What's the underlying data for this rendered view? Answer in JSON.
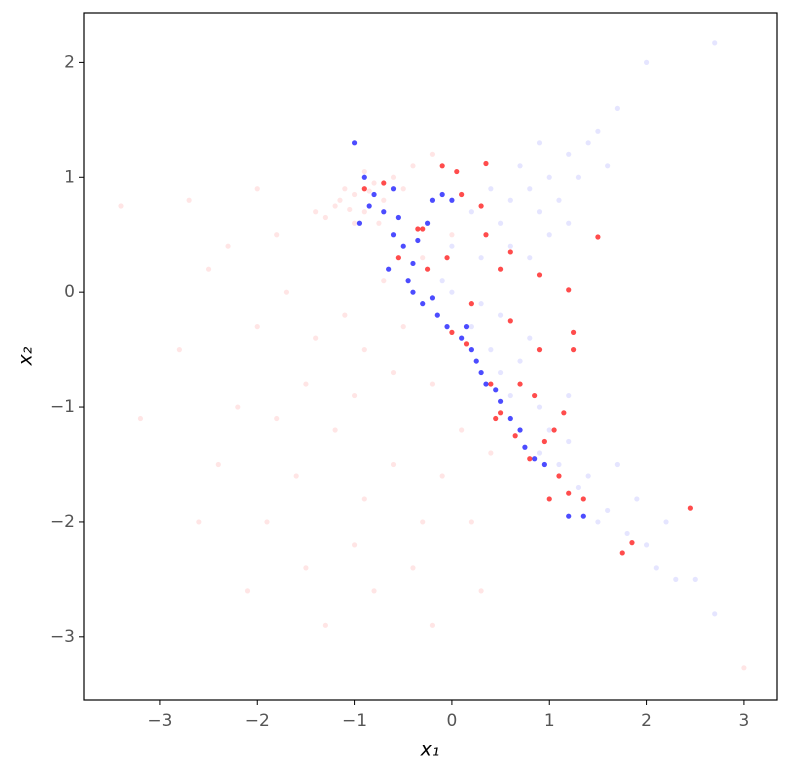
{
  "chart_data": {
    "type": "scatter",
    "xlabel": "x₁",
    "ylabel": "x₂",
    "xlim": [
      -3.78,
      3.34
    ],
    "ylim": [
      -3.55,
      2.43
    ],
    "xticks": [
      {
        "value": -3,
        "label": "−3"
      },
      {
        "value": -2,
        "label": "−2"
      },
      {
        "value": -1,
        "label": "−1"
      },
      0,
      1,
      2,
      3
    ],
    "yticks": [
      {
        "value": -3,
        "label": "−3"
      },
      {
        "value": -2,
        "label": "−2"
      },
      {
        "value": -1,
        "label": "−1"
      },
      0,
      1,
      2
    ],
    "series": [
      {
        "color": "#ff0000",
        "alpha": 0.1,
        "x": [
          -1.2,
          -1.0,
          -0.9,
          -1.1,
          -0.8,
          -1.3,
          -0.7,
          -1.0,
          -0.6,
          -0.9,
          -1.15,
          -0.5,
          -1.4,
          -0.4,
          -0.2,
          -0.75,
          -1.05,
          -0.85,
          -2.5,
          -2.0,
          -1.8,
          -1.5,
          -1.2,
          -0.9,
          -0.6,
          -0.3,
          -1.0,
          -1.6,
          -2.2,
          -2.8,
          -0.5,
          -0.2,
          0.1,
          -0.8,
          -1.3,
          -0.4,
          0.2,
          -1.9,
          -2.4,
          -3.2,
          -3.4,
          -2.7,
          -1.7,
          -1.1,
          -0.7,
          -1.4,
          -0.1,
          0.4,
          -0.9,
          -1.5,
          -2.1,
          -0.2,
          -1.0,
          -2.0,
          -2.6,
          0.3,
          -0.6,
          -1.8,
          0.0,
          -0.3,
          -2.3,
          3.0
        ],
        "y": [
          0.75,
          0.85,
          0.7,
          0.9,
          0.95,
          0.65,
          0.8,
          0.6,
          1.0,
          1.05,
          0.8,
          0.9,
          0.7,
          1.1,
          1.2,
          0.6,
          0.72,
          0.88,
          0.2,
          -0.3,
          0.5,
          -0.8,
          -1.2,
          -0.5,
          -1.5,
          -2.0,
          -2.2,
          -1.6,
          -1.0,
          -0.5,
          -0.3,
          -0.8,
          -1.2,
          -2.6,
          -2.9,
          -2.4,
          -2.0,
          -2.0,
          -1.5,
          -1.1,
          0.75,
          0.8,
          0.0,
          -0.2,
          0.1,
          -0.4,
          -1.6,
          -1.4,
          -1.8,
          -2.4,
          -2.6,
          -2.9,
          -0.9,
          0.9,
          -2.0,
          -2.6,
          -0.7,
          -1.1,
          0.5,
          0.3,
          0.4,
          -3.27
        ]
      },
      {
        "color": "#0000ff",
        "alpha": 0.1,
        "x": [
          0.5,
          0.8,
          1.0,
          1.2,
          0.6,
          0.9,
          1.3,
          0.7,
          1.1,
          0.4,
          1.5,
          0.3,
          1.0,
          0.2,
          1.4,
          0.9,
          0.6,
          1.2,
          1.7,
          2.0,
          2.7,
          0.0,
          -0.1,
          1.6,
          0.8,
          0.2,
          0.4,
          0.5,
          0.7,
          0.6,
          0.9,
          1.0,
          1.2,
          1.1,
          1.3,
          1.4,
          1.6,
          1.5,
          1.8,
          2.0,
          2.1,
          2.3,
          1.7,
          0.8,
          0.3,
          1.9,
          2.5,
          2.7,
          0.0,
          0.5,
          1.2,
          2.2,
          0.9
        ],
        "y": [
          0.6,
          0.9,
          1.0,
          1.2,
          0.4,
          0.7,
          1.0,
          1.1,
          0.8,
          0.9,
          1.4,
          0.3,
          0.5,
          0.7,
          1.3,
          1.3,
          0.8,
          0.6,
          1.6,
          2.0,
          2.17,
          0.4,
          0.1,
          1.1,
          0.3,
          -0.3,
          -0.5,
          -0.7,
          -0.6,
          -0.9,
          -1.0,
          -1.2,
          -1.3,
          -1.5,
          -1.7,
          -1.6,
          -1.9,
          -2.0,
          -2.1,
          -2.2,
          -2.4,
          -2.5,
          -1.5,
          -0.4,
          -0.1,
          -1.8,
          -2.5,
          -2.8,
          0.0,
          -0.2,
          -0.9,
          -2.0,
          -1.4
        ]
      },
      {
        "color": "#0000ff",
        "alpha": 0.7,
        "x": [
          -1.0,
          -0.9,
          -0.8,
          -0.7,
          -0.6,
          -0.5,
          -0.65,
          -0.45,
          -0.4,
          -0.3,
          -0.2,
          -0.15,
          -0.05,
          0.1,
          0.2,
          0.25,
          0.3,
          0.35,
          0.45,
          0.5,
          0.6,
          0.7,
          0.75,
          0.85,
          0.95,
          1.2,
          1.35,
          -0.95,
          -0.85,
          -0.55,
          -0.35,
          -0.2,
          -0.1,
          0.0,
          -0.6,
          -0.4,
          -0.25,
          0.15
        ],
        "y": [
          1.3,
          1.0,
          0.85,
          0.7,
          0.5,
          0.4,
          0.2,
          0.1,
          0.0,
          -0.1,
          -0.05,
          -0.2,
          -0.3,
          -0.4,
          -0.5,
          -0.6,
          -0.7,
          -0.8,
          -0.85,
          -0.95,
          -1.1,
          -1.2,
          -1.35,
          -1.45,
          -1.5,
          -1.95,
          -1.95,
          0.6,
          0.75,
          0.65,
          0.45,
          0.8,
          0.85,
          0.8,
          0.9,
          0.25,
          0.6,
          -0.3
        ]
      },
      {
        "color": "#ff0000",
        "alpha": 0.7,
        "x": [
          -0.1,
          0.05,
          0.1,
          0.35,
          -0.9,
          -0.7,
          -0.3,
          0.3,
          0.6,
          0.35,
          0.5,
          0.9,
          1.5,
          1.2,
          1.25,
          1.25,
          0.6,
          0.9,
          0.4,
          0.5,
          0.65,
          0.8,
          0.95,
          1.05,
          1.1,
          1.2,
          1.35,
          1.0,
          2.45,
          1.75,
          1.85,
          -0.35,
          -0.55,
          -0.25,
          0.0,
          0.15,
          0.2,
          0.45,
          0.85,
          1.15,
          0.7,
          -0.05
        ],
        "y": [
          1.1,
          1.05,
          0.85,
          1.12,
          0.9,
          0.95,
          0.55,
          0.75,
          0.35,
          0.5,
          0.2,
          0.15,
          0.48,
          0.02,
          -0.35,
          -0.5,
          -0.25,
          -0.5,
          -0.8,
          -1.05,
          -1.25,
          -1.45,
          -1.3,
          -1.2,
          -1.6,
          -1.75,
          -1.8,
          -1.8,
          -1.88,
          -2.27,
          -2.18,
          0.55,
          0.3,
          0.2,
          -0.35,
          -0.45,
          -0.1,
          -1.1,
          -0.9,
          -1.05,
          -0.8,
          0.3
        ]
      }
    ]
  }
}
